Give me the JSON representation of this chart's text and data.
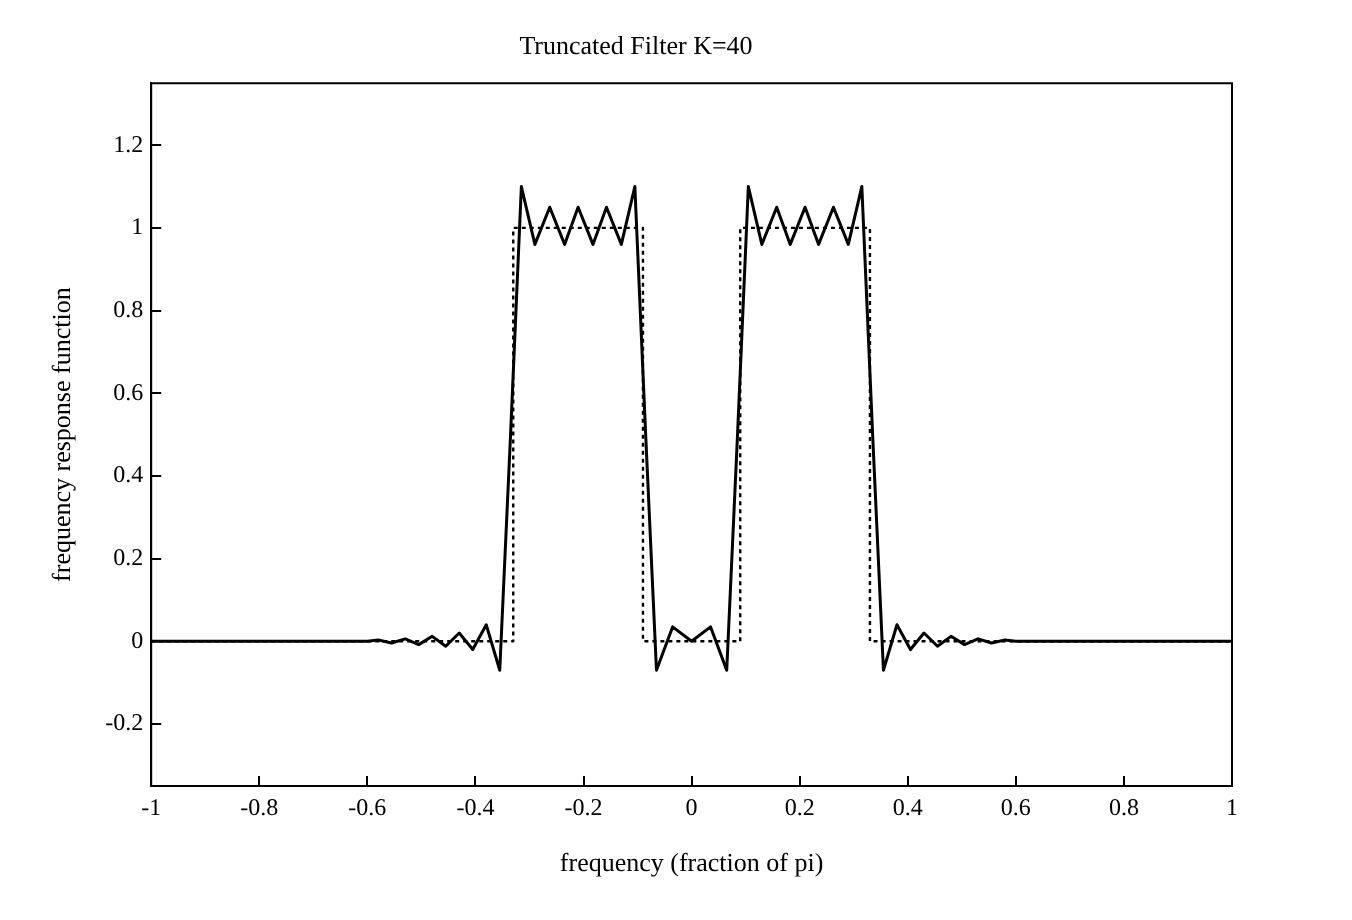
{
  "chart_data": {
    "type": "line",
    "title": "Truncated Filter K=40",
    "xlabel": "frequency (fraction of pi)",
    "ylabel": "frequency response function",
    "xlim": [
      -1,
      1
    ],
    "xticks": [
      -1,
      -0.8,
      -0.6,
      -0.4,
      -0.2,
      0,
      0.2,
      0.4,
      0.6,
      0.8,
      1
    ],
    "ylim": [
      -0.35,
      1.35
    ],
    "yticks": [
      -0.2,
      0,
      0.2,
      0.4,
      0.6,
      0.8,
      1,
      1.2
    ],
    "grid": false,
    "legend": false,
    "marker": "none",
    "series": [
      {
        "color": "#000000",
        "line_style": "solid",
        "x": [
          -1,
          -0.6,
          -0.58,
          -0.555,
          -0.53,
          -0.505,
          -0.48,
          -0.455,
          -0.43,
          -0.405,
          -0.38,
          -0.355,
          -0.335,
          -0.315,
          -0.29,
          -0.2625,
          -0.235,
          -0.21,
          -0.1825,
          -0.1575,
          -0.13,
          -0.105,
          -0.085,
          -0.065,
          -0.035,
          0,
          0.035,
          0.065,
          0.085,
          0.105,
          0.13,
          0.1575,
          0.1825,
          0.21,
          0.235,
          0.2625,
          0.29,
          0.315,
          0.335,
          0.355,
          0.38,
          0.405,
          0.43,
          0.455,
          0.48,
          0.505,
          0.53,
          0.555,
          0.58,
          0.6,
          1
        ],
        "values": [
          0,
          0,
          0.003,
          -0.004,
          0.006,
          -0.008,
          0.012,
          -0.012,
          0.02,
          -0.02,
          0.04,
          -0.07,
          0.5,
          1.1,
          0.96,
          1.05,
          0.96,
          1.05,
          0.96,
          1.05,
          0.96,
          1.1,
          0.5,
          -0.07,
          0.035,
          0,
          0.035,
          -0.07,
          0.5,
          1.1,
          0.96,
          1.05,
          0.96,
          1.05,
          0.96,
          1.05,
          0.96,
          1.1,
          0.5,
          -0.07,
          0.04,
          -0.02,
          0.02,
          -0.012,
          0.012,
          -0.008,
          0.006,
          -0.004,
          0.003,
          0,
          0
        ]
      },
      {
        "color": "#000000",
        "line_style": "dotted",
        "x": [
          -1,
          -0.33,
          -0.33,
          -0.09,
          -0.09,
          0.09,
          0.09,
          0.33,
          0.33,
          1
        ],
        "values": [
          0,
          0,
          1,
          1,
          0,
          0,
          1,
          1,
          0,
          0
        ]
      }
    ]
  }
}
